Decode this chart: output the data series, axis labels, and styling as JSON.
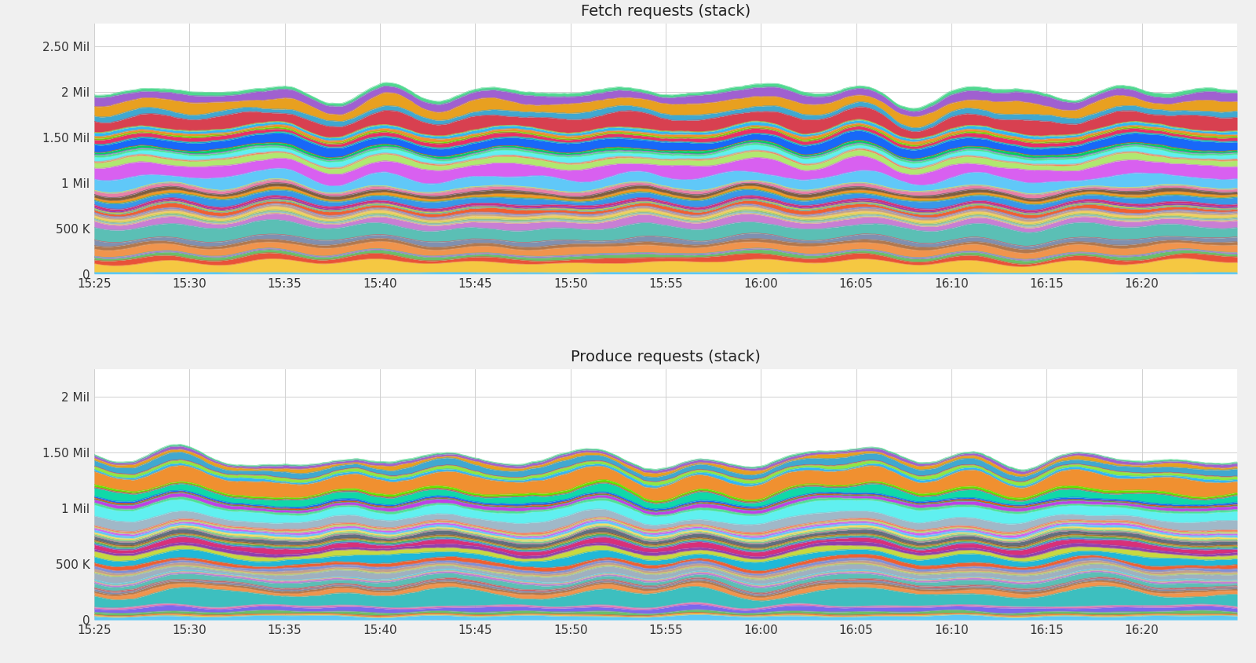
{
  "title1": "Fetch requests (stack)",
  "title2": "Produce requests (stack)",
  "x_ticks": [
    0,
    30,
    60,
    90,
    120,
    150,
    180,
    210,
    240,
    270,
    300,
    330
  ],
  "x_labels": [
    "15:25",
    "15:30",
    "15:35",
    "15:40",
    "15:45",
    "15:50",
    "15:55",
    "16:00",
    "16:05",
    "16:10",
    "16:15",
    "16:20"
  ],
  "fetch_ylim": [
    0,
    2750000
  ],
  "fetch_yticks": [
    0,
    500000,
    1000000,
    1500000,
    2000000,
    2500000
  ],
  "fetch_ylabels": [
    "0",
    "500 K",
    "1 Mil",
    "1.50 Mil",
    "2 Mil",
    "2.50 Mil"
  ],
  "produce_ylim": [
    0,
    2250000
  ],
  "produce_yticks": [
    0,
    500000,
    1000000,
    1500000,
    2000000
  ],
  "produce_ylabels": [
    "0",
    "500 K",
    "1 Mil",
    "1.50 Mil",
    "2 Mil"
  ],
  "fetch_total_mean": 2000000,
  "fetch_n_series": 55,
  "produce_total_mean": 1450000,
  "produce_n_series": 55,
  "background_color": "#f0f0f0",
  "chart_bg": "#ffffff",
  "grid_color": "#d0d0d0",
  "title_fontsize": 14,
  "tick_fontsize": 11,
  "colors": [
    "#5bc8f5",
    "#f5c842",
    "#e8523a",
    "#6abf69",
    "#7b68ee",
    "#e87db5",
    "#3dbfbf",
    "#f0944d",
    "#b07850",
    "#8090b0",
    "#d46060",
    "#5bbfb5",
    "#c87fd4",
    "#f0c860",
    "#70c8d8",
    "#a0b0c0",
    "#90c870",
    "#f0d060",
    "#c0a090",
    "#8090d8",
    "#f06030",
    "#20b8d8",
    "#c8d840",
    "#9040b0",
    "#d83078",
    "#3898e8",
    "#50b060",
    "#f09820",
    "#7d5e43",
    "#607080",
    "#e880a8",
    "#80c890",
    "#f8e060",
    "#60c8f8",
    "#d860f0",
    "#b0e870",
    "#f88060",
    "#a0b8c8",
    "#60f0f0",
    "#50e090",
    "#c040e8",
    "#00d060",
    "#f05000",
    "#1868f8",
    "#10d8a8",
    "#e83068",
    "#60e800",
    "#f09030",
    "#30b8f8",
    "#90e840",
    "#d84050",
    "#40a8d0",
    "#e8a020",
    "#a060d0",
    "#50d890",
    "#f07060",
    "#308890",
    "#d0d850",
    "#b84080",
    "#70a8e0",
    "#e06830",
    "#60c0a0",
    "#d8b030",
    "#9850c0",
    "#30d0a0"
  ]
}
